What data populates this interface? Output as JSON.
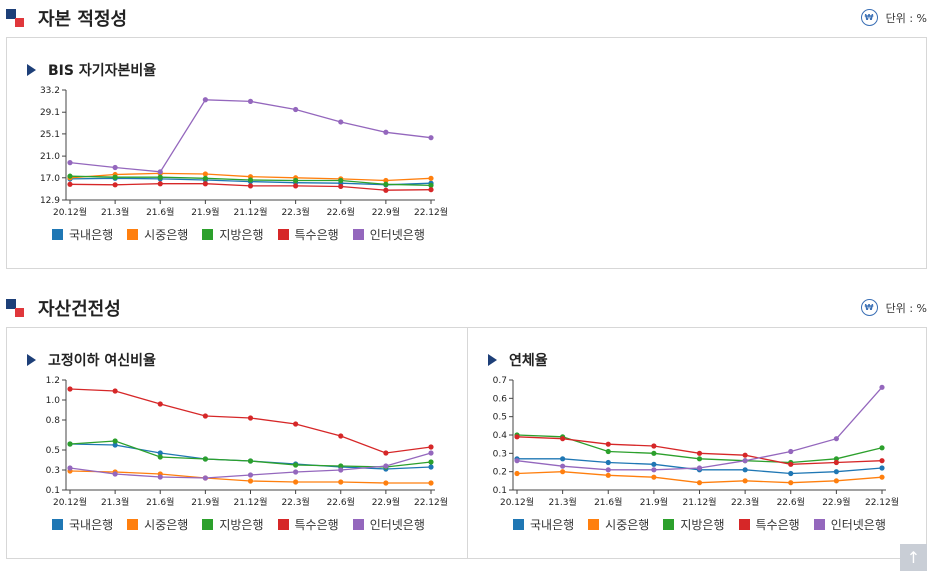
{
  "sections": [
    {
      "title": "자본 적정성",
      "unit_label": "단위 : %",
      "unit_icon": "won-circle-icon"
    },
    {
      "title": "자산건전성",
      "unit_label": "단위 : %",
      "unit_icon": "won-circle-icon"
    }
  ],
  "series_colors": {
    "국내은행": "#1f77b4",
    "시중은행": "#ff7f0e",
    "지방은행": "#2ca02c",
    "특수은행": "#d62728",
    "인터넷은행": "#9467bd"
  },
  "chart_data": [
    {
      "type": "line",
      "title": "BIS 자기자본비율",
      "x": [
        "20.12월",
        "21.3월",
        "21.6월",
        "21.9월",
        "21.12월",
        "22.3월",
        "22.6월",
        "22.9월",
        "22.12월"
      ],
      "yticks": [
        "12.9",
        "17.0",
        "21.0",
        "25.1",
        "29.1",
        "33.2"
      ],
      "ylim": [
        12.9,
        33.2
      ],
      "grid": false,
      "legend_position": "bottom-left",
      "series": [
        {
          "name": "국내은행",
          "values": [
            16.8,
            16.9,
            16.8,
            16.6,
            16.3,
            16.1,
            16.0,
            15.7,
            16.0
          ]
        },
        {
          "name": "시중은행",
          "values": [
            17.0,
            17.6,
            17.8,
            17.7,
            17.2,
            17.0,
            16.8,
            16.5,
            16.9
          ]
        },
        {
          "name": "지방은행",
          "values": [
            17.3,
            17.1,
            17.1,
            16.9,
            16.6,
            16.5,
            16.5,
            15.8,
            15.6
          ]
        },
        {
          "name": "특수은행",
          "values": [
            15.8,
            15.7,
            15.9,
            15.9,
            15.5,
            15.5,
            15.4,
            14.7,
            14.8
          ]
        },
        {
          "name": "인터넷은행",
          "values": [
            19.8,
            18.9,
            18.1,
            31.4,
            31.1,
            29.6,
            27.3,
            25.4,
            24.4
          ]
        }
      ]
    },
    {
      "type": "line",
      "title": "고정이하 여신비율",
      "x": [
        "20.12월",
        "21.3월",
        "21.6월",
        "21.9월",
        "21.12월",
        "22.3월",
        "22.6월",
        "22.9월",
        "22.12월"
      ],
      "yticks": [
        "0.1",
        "0.3",
        "0.5",
        "0.8",
        "1.0",
        "1.2"
      ],
      "ylim": [
        0.1,
        1.2
      ],
      "grid": false,
      "legend_position": "bottom-left",
      "series": [
        {
          "name": "국내은행",
          "values": [
            0.56,
            0.55,
            0.47,
            0.41,
            0.39,
            0.36,
            0.33,
            0.31,
            0.33
          ]
        },
        {
          "name": "시중은행",
          "values": [
            0.29,
            0.28,
            0.26,
            0.22,
            0.19,
            0.18,
            0.18,
            0.17,
            0.17
          ]
        },
        {
          "name": "지방은행",
          "values": [
            0.56,
            0.59,
            0.43,
            0.41,
            0.39,
            0.35,
            0.34,
            0.33,
            0.38
          ]
        },
        {
          "name": "특수은행",
          "values": [
            1.11,
            1.09,
            0.96,
            0.84,
            0.82,
            0.76,
            0.64,
            0.47,
            0.53
          ]
        },
        {
          "name": "인터넷은행",
          "values": [
            0.32,
            0.26,
            0.23,
            0.22,
            0.25,
            0.28,
            0.3,
            0.34,
            0.47
          ]
        }
      ]
    },
    {
      "type": "line",
      "title": "연체율",
      "x": [
        "20.12월",
        "21.3월",
        "21.6월",
        "21.9월",
        "21.12월",
        "22.3월",
        "22.6월",
        "22.9월",
        "22.12월"
      ],
      "yticks": [
        "0.1",
        "0.2",
        "0.3",
        "0.4",
        "0.5",
        "0.6",
        "0.7"
      ],
      "ylim": [
        0.1,
        0.7
      ],
      "grid": false,
      "legend_position": "bottom-left",
      "series": [
        {
          "name": "국내은행",
          "values": [
            0.27,
            0.27,
            0.25,
            0.24,
            0.21,
            0.21,
            0.19,
            0.2,
            0.22
          ]
        },
        {
          "name": "시중은행",
          "values": [
            0.19,
            0.2,
            0.18,
            0.17,
            0.14,
            0.15,
            0.14,
            0.15,
            0.17
          ]
        },
        {
          "name": "지방은행",
          "values": [
            0.4,
            0.39,
            0.31,
            0.3,
            0.27,
            0.26,
            0.25,
            0.27,
            0.33
          ]
        },
        {
          "name": "특수은행",
          "values": [
            0.39,
            0.38,
            0.35,
            0.34,
            0.3,
            0.29,
            0.24,
            0.25,
            0.26
          ]
        },
        {
          "name": "인터넷은행",
          "values": [
            0.26,
            0.23,
            0.21,
            0.21,
            0.22,
            0.26,
            0.31,
            0.38,
            0.66
          ]
        }
      ]
    }
  ]
}
